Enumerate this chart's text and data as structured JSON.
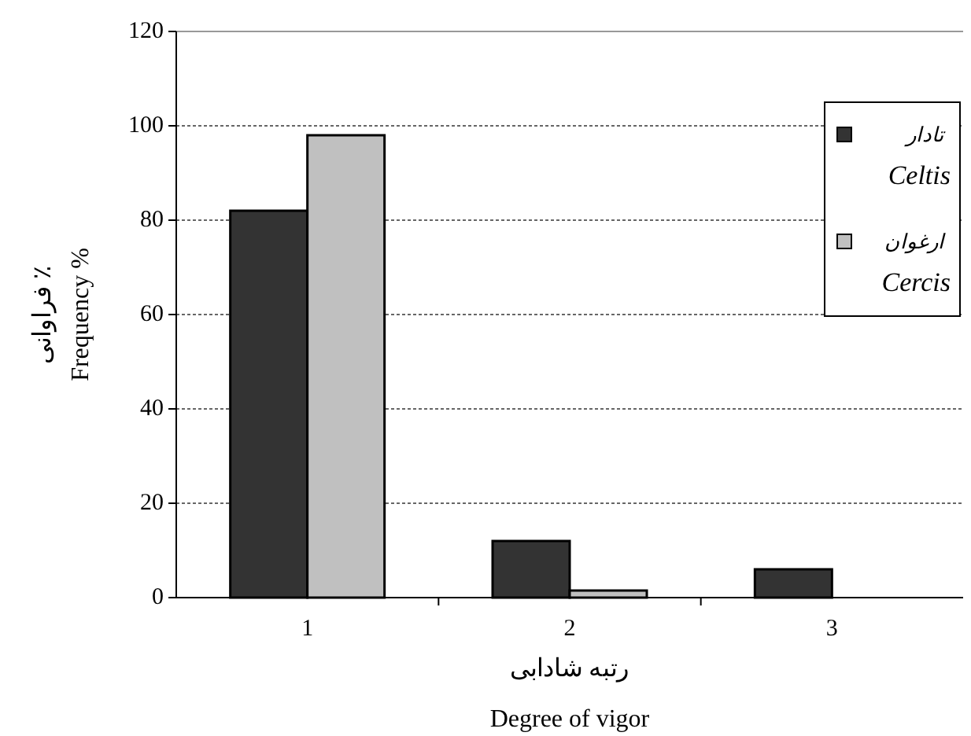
{
  "chart_data": {
    "type": "bar",
    "xlabel": "رتبه شادابی\nDegree  of vigor",
    "ylabel": "فراوانی ٪\nFrequency  %",
    "categories": [
      "1",
      "2",
      "3"
    ],
    "series": [
      {
        "name": "تادار\nCeltis",
        "color": "#333333",
        "values": [
          82,
          12,
          6
        ]
      },
      {
        "name": "ارغوان\nCercis",
        "color": "#c0c0c0",
        "values": [
          98,
          1.5,
          0
        ]
      }
    ],
    "ylim": [
      0,
      120
    ],
    "yticks": [
      0,
      20,
      40,
      60,
      80,
      100,
      120
    ],
    "grid": "y",
    "legend": "top right"
  }
}
